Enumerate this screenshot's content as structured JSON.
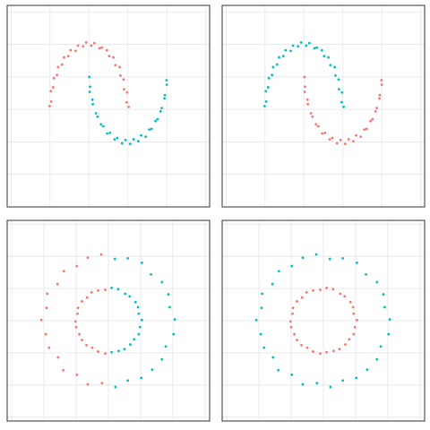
{
  "chart_data": [
    {
      "type": "scatter",
      "xlim": [
        -2.1,
        3.1
      ],
      "ylim": [
        -1.5,
        1.6
      ],
      "xticks": [
        -2,
        -1,
        0,
        1,
        2,
        3
      ],
      "yticks": [
        -1,
        -0.5,
        0,
        0.5,
        1,
        1.5
      ],
      "grid": true,
      "series": [
        {
          "color": "#f8766d",
          "x": [
            1.02,
            0.97,
            0.98,
            0.9,
            0.89,
            0.81,
            0.79,
            0.68,
            0.63,
            0.52,
            0.46,
            0.33,
            0.27,
            0.14,
            0.06,
            -0.07,
            -0.15,
            -0.28,
            -0.34,
            -0.47,
            -0.53,
            -0.64,
            -0.69,
            -0.79,
            -0.82,
            -0.9,
            -0.92,
            -0.98,
            -0.97,
            -1.01
          ],
          "y": [
            0.04,
            0.11,
            0.26,
            0.31,
            0.46,
            0.52,
            0.65,
            0.68,
            0.8,
            0.82,
            0.91,
            0.95,
            0.94,
            1.02,
            0.98,
            1.03,
            0.97,
            0.98,
            0.9,
            0.91,
            0.82,
            0.8,
            0.69,
            0.65,
            0.53,
            0.48,
            0.34,
            0.28,
            0.12,
            0.05
          ]
        },
        {
          "color": "#00bfc4",
          "x": [
            0.01,
            0.03,
            0.02,
            0.09,
            0.1,
            0.18,
            0.22,
            0.31,
            0.37,
            0.47,
            0.54,
            0.66,
            0.73,
            0.85,
            0.94,
            1.06,
            1.15,
            1.27,
            1.34,
            1.46,
            1.55,
            1.61,
            1.71,
            1.76,
            1.84,
            1.87,
            1.94,
            1.95,
            2.0,
            1.99
          ],
          "y": [
            0.5,
            0.35,
            0.27,
            0.15,
            0.08,
            -0.06,
            -0.11,
            -0.23,
            -0.26,
            -0.37,
            -0.36,
            -0.46,
            -0.44,
            -0.52,
            -0.47,
            -0.53,
            -0.46,
            -0.49,
            -0.4,
            -0.42,
            -0.31,
            -0.3,
            -0.18,
            -0.15,
            -0.03,
            0.02,
            0.17,
            0.22,
            0.38,
            0.45
          ]
        }
      ]
    },
    {
      "type": "scatter",
      "xlim": [
        -2.1,
        3.1
      ],
      "ylim": [
        -1.5,
        1.6
      ],
      "xticks": [
        -2,
        -1,
        0,
        1,
        2,
        3
      ],
      "yticks": [
        -1,
        -0.5,
        0,
        0.5,
        1,
        1.5
      ],
      "grid": true,
      "series": [
        {
          "color": "#00bfc4",
          "x": [
            1.02,
            0.97,
            0.98,
            0.9,
            0.89,
            0.81,
            0.79,
            0.68,
            0.63,
            0.52,
            0.46,
            0.33,
            0.27,
            0.14,
            0.06,
            -0.07,
            -0.15,
            -0.28,
            -0.34,
            -0.47,
            -0.53,
            -0.64,
            -0.69,
            -0.79,
            -0.82,
            -0.9,
            -0.92,
            -0.98,
            -0.97,
            -1.01
          ],
          "y": [
            0.04,
            0.11,
            0.26,
            0.31,
            0.46,
            0.52,
            0.65,
            0.68,
            0.8,
            0.82,
            0.91,
            0.95,
            0.94,
            1.02,
            0.98,
            1.03,
            0.97,
            0.98,
            0.9,
            0.91,
            0.82,
            0.8,
            0.69,
            0.65,
            0.53,
            0.48,
            0.34,
            0.28,
            0.12,
            0.05
          ]
        },
        {
          "color": "#f8766d",
          "x": [
            0.01,
            0.03,
            0.02,
            0.09,
            0.1,
            0.18,
            0.22,
            0.31,
            0.37,
            0.47,
            0.54,
            0.66,
            0.73,
            0.85,
            0.94,
            1.06,
            1.15,
            1.27,
            1.34,
            1.46,
            1.55,
            1.61,
            1.71,
            1.76,
            1.84,
            1.87,
            1.94,
            1.95,
            2.0,
            1.99
          ],
          "y": [
            0.5,
            0.35,
            0.27,
            0.15,
            0.08,
            -0.06,
            -0.11,
            -0.23,
            -0.26,
            -0.37,
            -0.36,
            -0.46,
            -0.44,
            -0.52,
            -0.47,
            -0.53,
            -0.46,
            -0.49,
            -0.4,
            -0.42,
            -0.31,
            -0.3,
            -0.18,
            -0.15,
            -0.03,
            0.02,
            0.17,
            0.22,
            0.38,
            0.45
          ]
        }
      ]
    },
    {
      "type": "scatter",
      "xlim": [
        -1.57,
        1.57
      ],
      "ylim": [
        -1.56,
        1.56
      ],
      "xticks": [
        -1.5,
        -1,
        -0.5,
        0,
        0.5,
        1,
        1.5
      ],
      "yticks": [
        -1.5,
        -1,
        -0.5,
        0,
        0.5,
        1,
        1.5
      ],
      "grid": true,
      "series": [
        {
          "color": "#f8766d",
          "x": [
            -0.11,
            -0.32,
            -0.49,
            -0.69,
            -0.79,
            -0.95,
            -0.96,
            -1.04,
            -0.97,
            -0.92,
            -0.78,
            -0.7,
            -0.49,
            -0.32,
            -0.1,
            -0.05,
            -0.16,
            -0.26,
            -0.33,
            -0.41,
            -0.47,
            -0.48,
            -0.51,
            -0.5,
            -0.45,
            -0.41,
            -0.34,
            -0.25,
            -0.16,
            -0.05
          ],
          "y": [
            1.03,
            0.98,
            0.85,
            0.77,
            0.57,
            0.42,
            0.2,
            0.01,
            -0.21,
            -0.42,
            -0.57,
            -0.77,
            -0.84,
            -0.99,
            -0.97,
            0.48,
            0.47,
            0.44,
            0.36,
            0.3,
            0.2,
            0.11,
            -0.01,
            -0.1,
            -0.21,
            -0.3,
            -0.38,
            -0.42,
            -0.48,
            -0.51
          ]
        },
        {
          "color": "#00bfc4",
          "x": [
            1.03,
            0.95,
            0.93,
            0.83,
            0.66,
            0.52,
            0.3,
            0.1,
            0.11,
            0.3,
            0.51,
            0.68,
            0.83,
            0.89,
            1.01,
            0.52,
            0.47,
            0.46,
            0.42,
            0.33,
            0.26,
            0.15,
            0.05,
            0.05,
            0.16,
            0.25,
            0.34,
            0.4,
            0.47,
            0.49
          ],
          "y": [
            0.02,
            0.21,
            0.41,
            0.6,
            0.72,
            0.9,
            0.97,
            0.96,
            -1.03,
            -0.93,
            -0.89,
            -0.76,
            -0.6,
            -0.4,
            -0.21,
            0.01,
            0.11,
            0.21,
            0.29,
            0.38,
            0.42,
            0.49,
            0.51,
            -0.49,
            -0.47,
            -0.44,
            -0.37,
            -0.29,
            -0.21,
            -0.1
          ]
        }
      ]
    },
    {
      "type": "scatter",
      "xlim": [
        -1.57,
        1.57
      ],
      "ylim": [
        -1.56,
        1.56
      ],
      "xticks": [
        -1.5,
        -1,
        -0.5,
        0,
        0.5,
        1,
        1.5
      ],
      "yticks": [
        -1.5,
        -1,
        -0.5,
        0,
        0.5,
        1,
        1.5
      ],
      "grid": true,
      "series": [
        {
          "color": "#00bfc4",
          "x": [
            1.03,
            0.95,
            0.93,
            0.83,
            0.66,
            0.52,
            0.3,
            0.1,
            -0.11,
            -0.32,
            -0.49,
            -0.69,
            -0.79,
            -0.95,
            -0.96,
            -1.04,
            -0.97,
            -0.92,
            -0.78,
            -0.7,
            -0.49,
            -0.32,
            -0.1,
            0.11,
            0.3,
            0.51,
            0.68,
            0.83,
            0.89,
            1.01
          ],
          "y": [
            0.02,
            0.21,
            0.41,
            0.6,
            0.72,
            0.9,
            0.97,
            0.96,
            1.03,
            0.98,
            0.85,
            0.77,
            0.57,
            0.42,
            0.2,
            0.01,
            -0.21,
            -0.42,
            -0.57,
            -0.77,
            -0.84,
            -0.99,
            -0.97,
            -1.03,
            -0.93,
            -0.89,
            -0.76,
            -0.6,
            -0.4,
            -0.21
          ]
        },
        {
          "color": "#f8766d",
          "x": [
            0.52,
            0.47,
            0.46,
            0.42,
            0.33,
            0.26,
            0.15,
            0.05,
            -0.05,
            -0.16,
            -0.26,
            -0.33,
            -0.41,
            -0.47,
            -0.48,
            -0.51,
            -0.5,
            -0.45,
            -0.41,
            -0.34,
            -0.25,
            -0.16,
            -0.05,
            0.05,
            0.16,
            0.25,
            0.34,
            0.4,
            0.47,
            0.49
          ],
          "y": [
            0.01,
            0.11,
            0.21,
            0.29,
            0.38,
            0.42,
            0.49,
            0.51,
            0.48,
            0.47,
            0.44,
            0.36,
            0.3,
            0.2,
            0.11,
            -0.01,
            -0.1,
            -0.21,
            -0.3,
            -0.38,
            -0.42,
            -0.48,
            -0.51,
            -0.49,
            -0.47,
            -0.44,
            -0.37,
            -0.29,
            -0.21,
            -0.1
          ]
        }
      ]
    }
  ]
}
